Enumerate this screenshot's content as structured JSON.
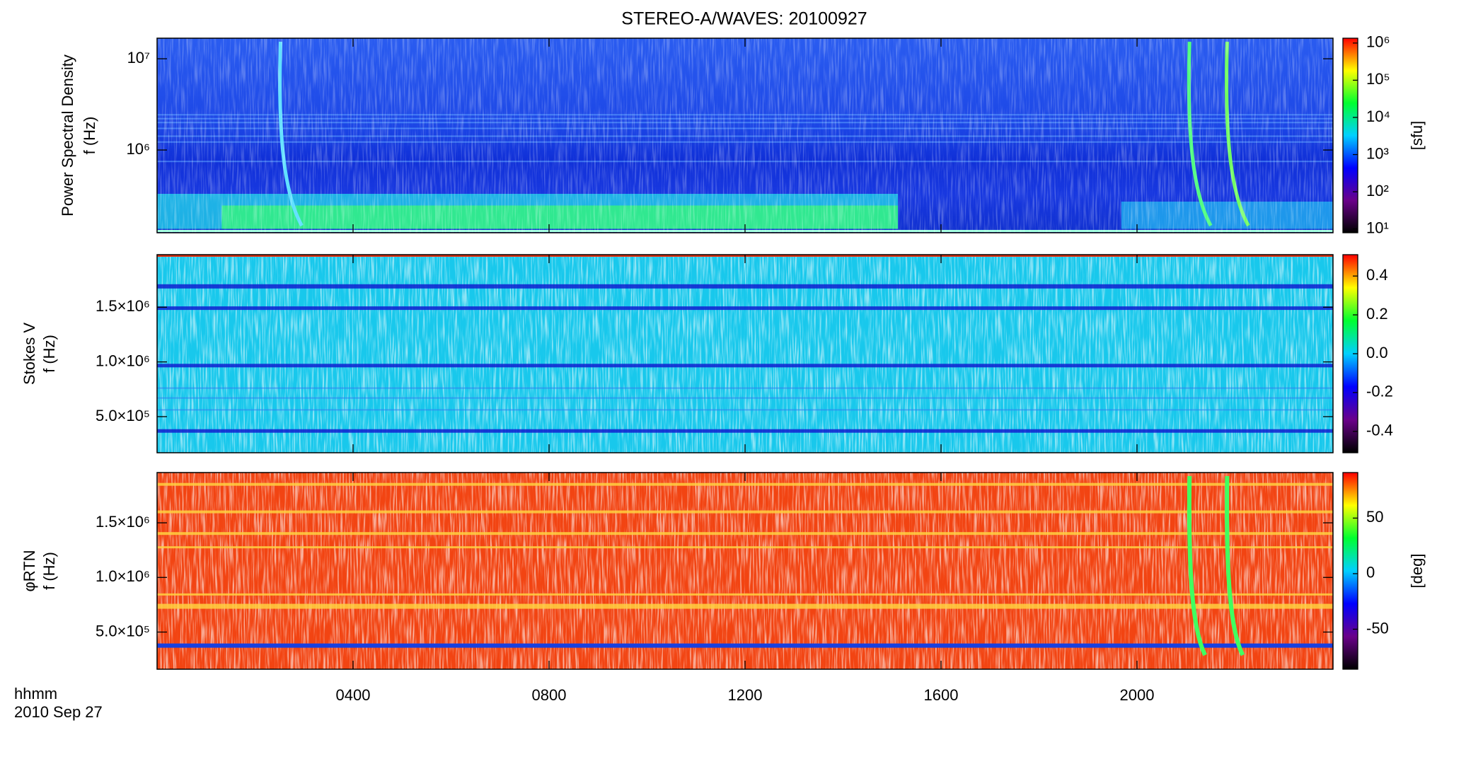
{
  "chart_data": [
    {
      "type": "heatmap",
      "title": "STEREO-A/WAVES: 20100927",
      "ylabel": [
        "Power Spectral Density",
        "f (Hz)"
      ],
      "xlim": [
        0,
        24
      ],
      "ylim": [
        124000,
        16800000
      ],
      "log_y": true,
      "yticks": [
        {
          "value": 1000000,
          "label": "10⁶"
        },
        {
          "value": 10000000,
          "label": "10⁷"
        }
      ],
      "colormap": [
        "#000000",
        "#6a008a",
        "#0000ff",
        "#00d0ff",
        "#00ff30",
        "#ffff00",
        "#ff0000"
      ],
      "colorbar": {
        "lim": [
          7.9,
          1350000
        ],
        "log": true,
        "label": "[sfu]",
        "ticks": [
          {
            "value": 10,
            "label": "10¹"
          },
          {
            "value": 100,
            "label": "10²"
          },
          {
            "value": 1000,
            "label": "10³"
          },
          {
            "value": 10000,
            "label": "10⁴"
          },
          {
            "value": 100000,
            "label": "10⁵"
          },
          {
            "value": 1000000,
            "label": "10⁶"
          }
        ]
      }
    },
    {
      "type": "heatmap",
      "ylabel": [
        "Stokes V",
        "f (Hz)"
      ],
      "xlim": [
        0,
        24
      ],
      "ylim": [
        170000,
        1980000
      ],
      "log_y": false,
      "yticks": [
        {
          "value": 500000,
          "label": "5.0×10⁵"
        },
        {
          "value": 1000000,
          "label": "1.0×10⁶"
        },
        {
          "value": 1500000,
          "label": "1.5×10⁶"
        }
      ],
      "colormap": [
        "#000000",
        "#6a008a",
        "#0000ff",
        "#00d0ff",
        "#00ff30",
        "#ffff00",
        "#ff0000"
      ],
      "colorbar": {
        "lim": [
          -0.51,
          0.51
        ],
        "log": false,
        "ticks": [
          -0.4,
          -0.2,
          {
            "value": 0,
            "label": "0.0"
          },
          0.2,
          0.4
        ]
      }
    },
    {
      "type": "heatmap",
      "ylabel": [
        "φRTN",
        "f (Hz)"
      ],
      "xlim": [
        0,
        24
      ],
      "ylim": [
        160000,
        1960000
      ],
      "log_y": false,
      "yticks": [
        {
          "value": 500000,
          "label": "5.0×10⁵"
        },
        {
          "value": 1000000,
          "label": "1.0×10⁶"
        },
        {
          "value": 1500000,
          "label": "1.5×10⁶"
        }
      ],
      "xticks": [
        {
          "value": 4,
          "label": "0400"
        },
        {
          "value": 8,
          "label": "0800"
        },
        {
          "value": 12,
          "label": "1200"
        },
        {
          "value": 16,
          "label": "1600"
        },
        {
          "value": 20,
          "label": "2000"
        }
      ],
      "xlabel": "hhmm",
      "xsubtitle": "2010 Sep 27",
      "colormap": [
        "#000000",
        "#6a008a",
        "#0000ff",
        "#00d0ff",
        "#00ff30",
        "#ffff00",
        "#ff0000"
      ],
      "colorbar": {
        "lim": [
          -86,
          91
        ],
        "log": false,
        "label": "[deg]",
        "ticks": [
          -50,
          0,
          50
        ]
      }
    }
  ]
}
